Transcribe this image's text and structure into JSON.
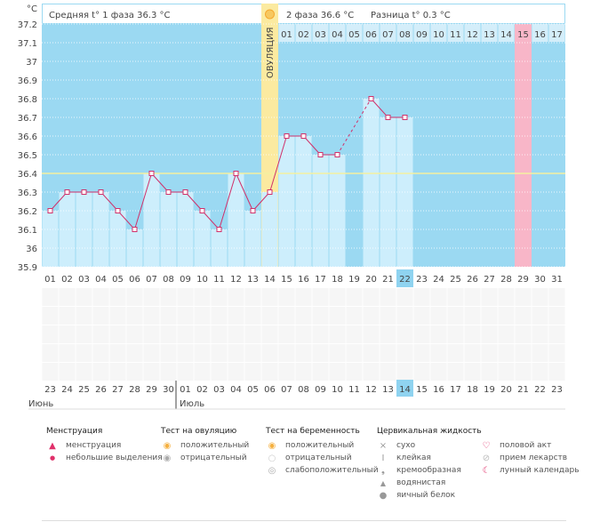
{
  "unit": "°C",
  "header": {
    "phase1": "Средняя t° 1 фаза 36.3 °C",
    "phase2": "2 фаза 36.6 °C",
    "diff": "Разница t° 0.3 °C",
    "ovulation": "ОВУЛЯЦИЯ"
  },
  "chart_data": {
    "type": "line",
    "title": "",
    "ylabel": "°C",
    "ylim": [
      35.9,
      37.2
    ],
    "yticks": [
      "37.2",
      "37.1",
      "37",
      "36.9",
      "36.8",
      "36.7",
      "36.6",
      "36.5",
      "36.4",
      "36.3",
      "36.2",
      "36.1",
      "36",
      "35.9"
    ],
    "cycle_days": [
      "01",
      "02",
      "03",
      "04",
      "05",
      "06",
      "07",
      "08",
      "09",
      "10",
      "11",
      "12",
      "13",
      "14",
      "15",
      "16",
      "17",
      "18",
      "19",
      "20",
      "21",
      "22",
      "23",
      "24",
      "25",
      "26",
      "27",
      "28",
      "29",
      "30",
      "31"
    ],
    "temperatures": [
      36.2,
      36.3,
      36.3,
      36.3,
      36.2,
      36.1,
      36.4,
      36.3,
      36.3,
      36.2,
      36.1,
      36.4,
      36.2,
      36.3,
      36.6,
      36.6,
      36.5,
      36.5,
      null,
      36.8,
      36.7,
      36.7,
      null,
      null,
      null,
      null,
      null,
      null,
      null,
      null,
      null
    ],
    "coverline": 36.4,
    "ovulation_day": 14,
    "current_day": 22,
    "expected_period_day": 29,
    "phase2_days": [
      "01",
      "02",
      "03",
      "04",
      "05",
      "06",
      "07",
      "08",
      "09",
      "10",
      "11",
      "12",
      "13",
      "14",
      "15",
      "16",
      "17"
    ]
  },
  "dates": [
    "23",
    "24",
    "25",
    "26",
    "27",
    "28",
    "29",
    "30",
    "01",
    "02",
    "03",
    "04",
    "05",
    "06",
    "07",
    "08",
    "09",
    "10",
    "11",
    "12",
    "13",
    "14",
    "15",
    "16",
    "17",
    "18",
    "19",
    "20",
    "21",
    "22",
    "23"
  ],
  "weekend_idx": [
    0,
    6,
    7,
    13,
    14,
    20,
    27,
    28
  ],
  "today_idx": 21,
  "months": [
    "Июнь",
    "Июль"
  ],
  "legend": {
    "menstruation": {
      "title": "Менструация",
      "items": [
        "менструация",
        "небольшие выделения"
      ]
    },
    "ovulation_test": {
      "title": "Тест на овуляцию",
      "items": [
        "положительный",
        "отрицательный"
      ]
    },
    "pregnancy_test": {
      "title": "Тест на беременность",
      "items": [
        "положительный",
        "отрицательный",
        "слабоположительный"
      ]
    },
    "cervical": {
      "title": "Цервикальная жидкость",
      "items": [
        "сухо",
        "клейкая",
        "кремообразная",
        "водянистая",
        "яичный белок"
      ]
    },
    "other": {
      "items": [
        "половой акт",
        "прием лекарств",
        "лунный календарь"
      ]
    }
  },
  "colors": {
    "bg": "#9bd9f2",
    "bar": "#cdeefc",
    "line": "#d0306a",
    "ovulation": "#fbeaa0",
    "period": "#f8b6c8",
    "weekend": "#d8305a"
  }
}
